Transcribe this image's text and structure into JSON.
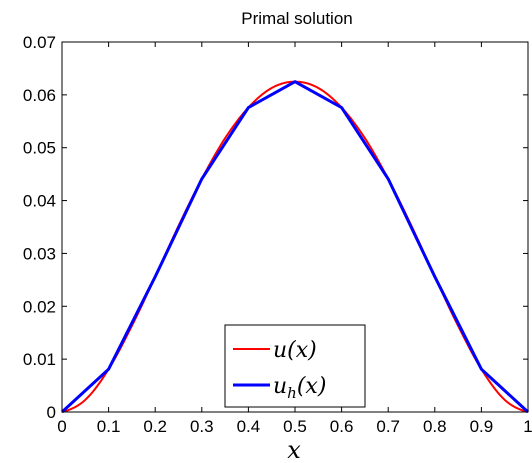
{
  "chart_data": {
    "type": "line",
    "title": "Primal solution",
    "xlabel": "x",
    "ylabel": "",
    "xlim": [
      0,
      1
    ],
    "ylim": [
      0,
      0.07
    ],
    "x_ticks": [
      "0",
      "0.1",
      "0.2",
      "0.3",
      "0.4",
      "0.5",
      "0.6",
      "0.7",
      "0.8",
      "0.9",
      "1"
    ],
    "y_ticks": [
      "0",
      "0.01",
      "0.02",
      "0.03",
      "0.04",
      "0.05",
      "0.06",
      "0.07"
    ],
    "grid": false,
    "legend_position": "bottom-center",
    "series": [
      {
        "name": "u(x)",
        "legend_base": "u",
        "legend_sub": "",
        "legend_arg": "(x)",
        "color": "#ff0000",
        "style": "smooth",
        "x": [
          0,
          0.05,
          0.1,
          0.15,
          0.2,
          0.25,
          0.3,
          0.35,
          0.4,
          0.45,
          0.5,
          0.55,
          0.6,
          0.65,
          0.7,
          0.75,
          0.8,
          0.85,
          0.9,
          0.95,
          1
        ],
        "y": [
          0,
          0.0023,
          0.0081,
          0.0163,
          0.0256,
          0.0352,
          0.0441,
          0.0518,
          0.0576,
          0.0613,
          0.0625,
          0.0613,
          0.0576,
          0.0518,
          0.0441,
          0.0352,
          0.0256,
          0.0163,
          0.0081,
          0.0023,
          0
        ]
      },
      {
        "name": "u_h(x)",
        "legend_base": "u",
        "legend_sub": "h",
        "legend_arg": "(x)",
        "color": "#0000ff",
        "style": "piecewise-linear",
        "x": [
          0,
          0.1,
          0.2,
          0.3,
          0.4,
          0.5,
          0.6,
          0.7,
          0.8,
          0.9,
          1
        ],
        "y": [
          0,
          0.0081,
          0.0256,
          0.0441,
          0.0576,
          0.0625,
          0.0576,
          0.0441,
          0.0256,
          0.0081,
          0
        ]
      }
    ]
  }
}
